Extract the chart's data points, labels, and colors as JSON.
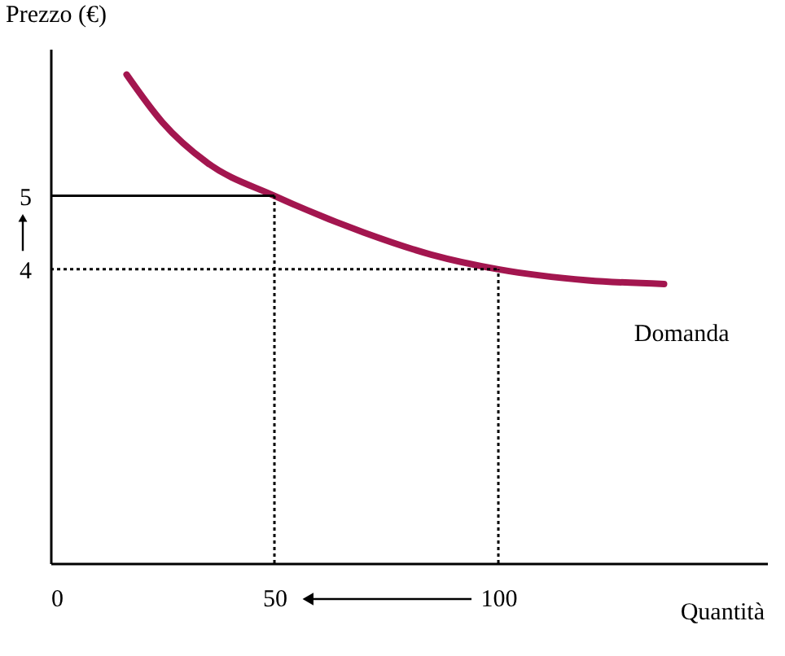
{
  "chart_data": {
    "type": "line",
    "xlabel": "Quantità",
    "ylabel": "Prezzo (€)",
    "x": [
      17,
      25,
      35,
      50,
      70,
      85,
      100,
      120,
      137
    ],
    "series": [
      {
        "name": "Domanda",
        "color": "#a3164f",
        "values": [
          6.65,
          6.0,
          5.45,
          5.0,
          4.5,
          4.2,
          4.0,
          3.85,
          3.8
        ]
      }
    ],
    "xlim": [
      0,
      160
    ],
    "ylim": [
      0,
      7
    ],
    "xticks": [
      0,
      50,
      100
    ],
    "yticks": [
      4,
      5
    ],
    "grid": false,
    "marker": "none",
    "line_style": "solid",
    "ref_lines": [
      {
        "axis": "x",
        "value": 50,
        "line_style": "dotted"
      },
      {
        "axis": "y",
        "value": 5,
        "line_style": "solid"
      },
      {
        "axis": "x",
        "value": 100,
        "line_style": "dotted"
      },
      {
        "axis": "y",
        "value": 4,
        "line_style": "dotted"
      }
    ]
  }
}
